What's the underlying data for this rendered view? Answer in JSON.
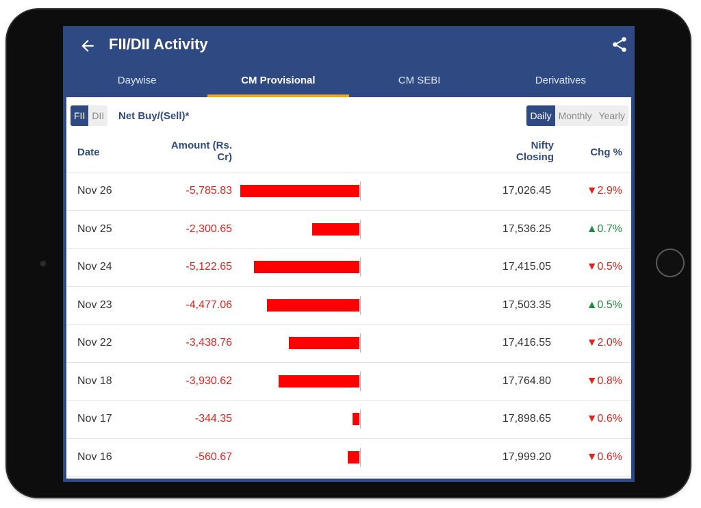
{
  "app": {
    "title": "FII/DII Activity"
  },
  "tabs": [
    {
      "label": "Daywise",
      "active": false
    },
    {
      "label": "CM Provisional",
      "active": true
    },
    {
      "label": "CM SEBI",
      "active": false
    },
    {
      "label": "Derivatives",
      "active": false
    }
  ],
  "filters": {
    "type_options": [
      "FII",
      "DII"
    ],
    "selected_type": "FII",
    "label": "Net Buy/(Sell)*",
    "period_options": [
      "Daily",
      "Monthly",
      "Yearly"
    ],
    "selected_period": "Daily"
  },
  "table": {
    "headers": {
      "date": "Date",
      "amount_line1": "Amount (Rs.",
      "amount_line2": "Cr)",
      "nifty_line1": "Nifty",
      "nifty_line2": "Closing",
      "chg": "Chg %"
    },
    "rows": [
      {
        "date": "Nov 26",
        "amount": "-5,785.83",
        "amount_value": -5785.83,
        "nifty": "17,026.45",
        "chg": "▼2.9%",
        "dir": "down"
      },
      {
        "date": "Nov 25",
        "amount": "-2,300.65",
        "amount_value": -2300.65,
        "nifty": "17,536.25",
        "chg": "▲0.7%",
        "dir": "up"
      },
      {
        "date": "Nov 24",
        "amount": "-5,122.65",
        "amount_value": -5122.65,
        "nifty": "17,415.05",
        "chg": "▼0.5%",
        "dir": "down"
      },
      {
        "date": "Nov 23",
        "amount": "-4,477.06",
        "amount_value": -4477.06,
        "nifty": "17,503.35",
        "chg": "▲0.5%",
        "dir": "up"
      },
      {
        "date": "Nov 22",
        "amount": "-3,438.76",
        "amount_value": -3438.76,
        "nifty": "17,416.55",
        "chg": "▼2.0%",
        "dir": "down"
      },
      {
        "date": "Nov 18",
        "amount": "-3,930.62",
        "amount_value": -3930.62,
        "nifty": "17,764.80",
        "chg": "▼0.8%",
        "dir": "down"
      },
      {
        "date": "Nov 17",
        "amount": "-344.35",
        "amount_value": -344.35,
        "nifty": "17,898.65",
        "chg": "▼0.6%",
        "dir": "down"
      },
      {
        "date": "Nov 16",
        "amount": "-560.67",
        "amount_value": -560.67,
        "nifty": "17,999.20",
        "chg": "▼0.6%",
        "dir": "down"
      }
    ]
  },
  "colors": {
    "header": "#2f4a82",
    "tab_indicator": "#f2a81d",
    "negative": "#e0231d",
    "positive": "#1f8a3b",
    "bar": "#ff0000"
  },
  "icons": {
    "back": "arrow-left-icon",
    "share": "share-icon"
  }
}
